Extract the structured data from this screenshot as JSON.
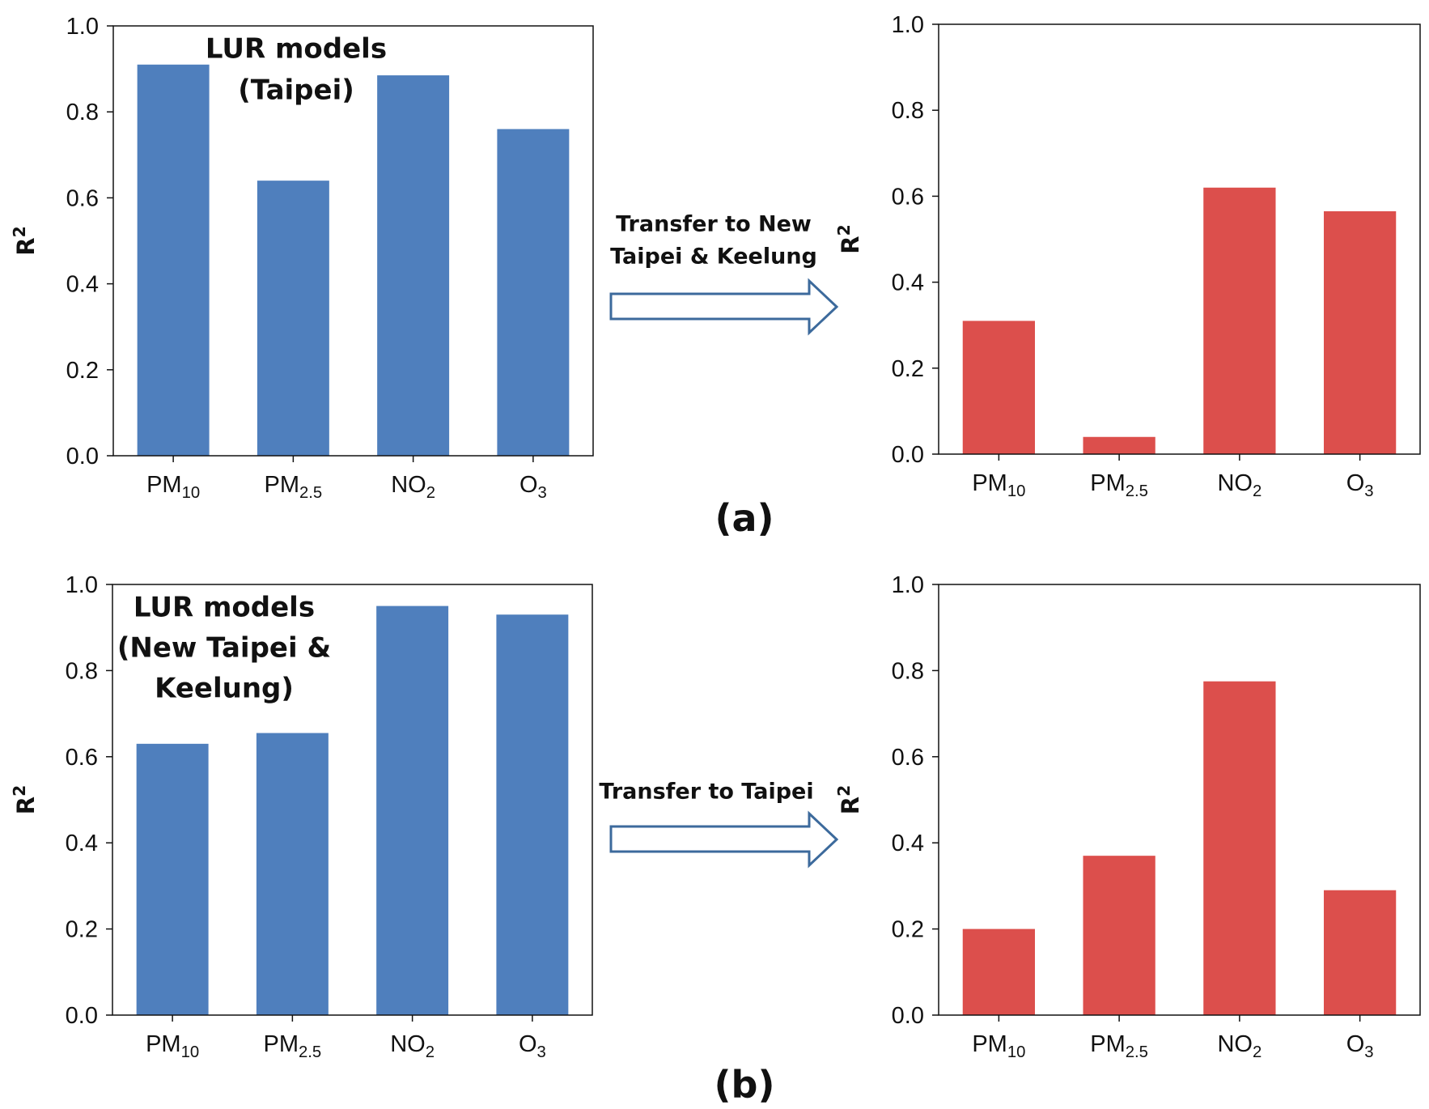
{
  "chart_data": [
    {
      "type": "bar",
      "ylabel": "R2",
      "color": "#4f7fbd",
      "annotation": [
        "LUR models",
        "(Taipei)"
      ],
      "categories": [
        "PM10",
        "PM2.5",
        "NO2",
        "O3"
      ],
      "values": [
        0.91,
        0.64,
        0.885,
        0.76
      ],
      "ylim": [
        0,
        1
      ],
      "yticks": [
        {
          "value": 0,
          "label": "0.0"
        },
        0.2,
        0.4,
        0.6,
        0.8,
        {
          "value": 1,
          "label": "1.0"
        }
      ]
    },
    {
      "type": "bar",
      "ylabel": "R2",
      "color": "#dc4f4c",
      "annotation": [
        "Transfer to New",
        "Taipei & Keelung"
      ],
      "categories": [
        "PM10",
        "PM2.5",
        "NO2",
        "O3"
      ],
      "values": [
        0.31,
        0.04,
        0.62,
        0.565
      ],
      "ylim": [
        0,
        1
      ],
      "yticks": [
        {
          "value": 0,
          "label": "0.0"
        },
        0.2,
        0.4,
        0.6,
        0.8,
        {
          "value": 1,
          "label": "1.0"
        }
      ]
    },
    {
      "type": "bar",
      "ylabel": "R2",
      "color": "#4f7fbd",
      "annotation": [
        "LUR models",
        "(New Taipei &",
        "Keelung)"
      ],
      "categories": [
        "PM10",
        "PM2.5",
        "NO2",
        "O3"
      ],
      "values": [
        0.63,
        0.655,
        0.95,
        0.93
      ],
      "ylim": [
        0,
        1
      ],
      "yticks": [
        {
          "value": 0,
          "label": "0.0"
        },
        0.2,
        0.4,
        0.6,
        0.8,
        {
          "value": 1,
          "label": "1.0"
        }
      ]
    },
    {
      "type": "bar",
      "ylabel": "R2",
      "color": "#dc4f4c",
      "annotation": [
        "Transfer to Taipei"
      ],
      "categories": [
        "PM10",
        "PM2.5",
        "NO2",
        "O3"
      ],
      "values": [
        0.2,
        0.37,
        0.775,
        0.29
      ],
      "ylim": [
        0,
        1
      ],
      "yticks": [
        {
          "value": 0,
          "label": "0.0"
        },
        0.2,
        0.4,
        0.6,
        0.8,
        {
          "value": 1,
          "label": "1.0"
        }
      ]
    }
  ],
  "panel_labels": [
    "(a)",
    "(b)"
  ]
}
